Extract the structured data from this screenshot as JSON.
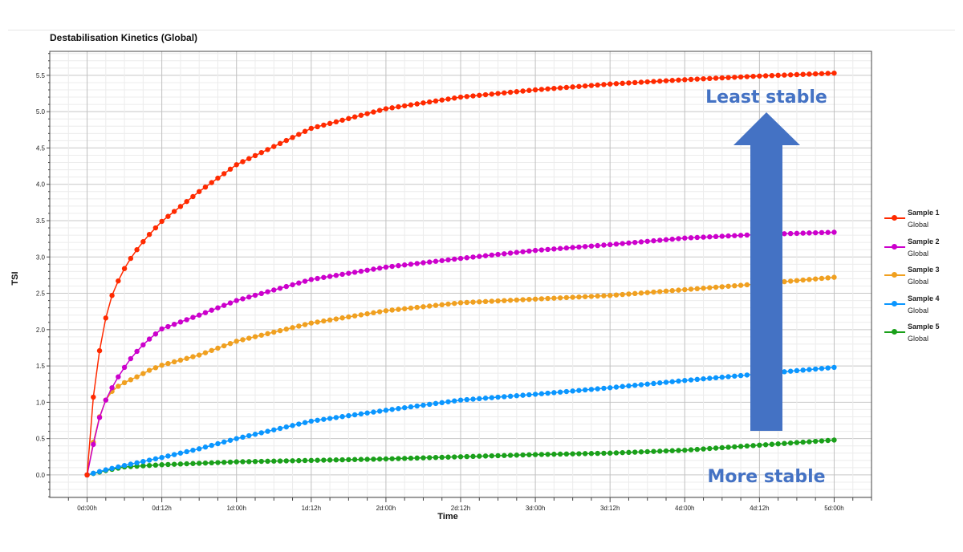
{
  "chart_data": {
    "type": "line",
    "title": "Destabilisation Kinetics (Global)",
    "xlabel": "Time",
    "ylabel": "TSI",
    "x_unit": "hours",
    "xlim": [
      -6,
      126
    ],
    "ylim": [
      -0.31,
      5.83
    ],
    "grid": true,
    "legend_placement": "right",
    "x_ticks": [
      {
        "value": 0,
        "label": "0d:00h"
      },
      {
        "value": 12,
        "label": "0d:12h"
      },
      {
        "value": 24,
        "label": "1d:00h"
      },
      {
        "value": 36,
        "label": "1d:12h"
      },
      {
        "value": 48,
        "label": "2d:00h"
      },
      {
        "value": 60,
        "label": "2d:12h"
      },
      {
        "value": 72,
        "label": "3d:00h"
      },
      {
        "value": 84,
        "label": "3d:12h"
      },
      {
        "value": 96,
        "label": "4d:00h"
      },
      {
        "value": 108,
        "label": "4d:12h"
      },
      {
        "value": 120,
        "label": "5d:00h"
      }
    ],
    "y_ticks": [
      "0.0",
      "0.5",
      "1.0",
      "1.5",
      "2.0",
      "2.5",
      "3.0",
      "3.5",
      "4.0",
      "4.5",
      "5.0",
      "5.5"
    ],
    "series": [
      {
        "name": "Sample 1",
        "subtitle": "Global",
        "color": "#ff2a00",
        "x": [
          0,
          1,
          2,
          3,
          4,
          5,
          6,
          7,
          8,
          9,
          10,
          12,
          18,
          24,
          36,
          48,
          60,
          72,
          84,
          96,
          108,
          120
        ],
        "y": [
          0,
          1.07,
          1.71,
          2.16,
          2.47,
          2.67,
          2.84,
          2.98,
          3.1,
          3.21,
          3.31,
          3.49,
          3.9,
          4.27,
          4.77,
          5.04,
          5.2,
          5.3,
          5.38,
          5.44,
          5.49,
          5.53
        ]
      },
      {
        "name": "Sample 2",
        "subtitle": "Global",
        "color": "#cc00cc",
        "x": [
          0,
          1,
          2,
          3,
          4,
          5,
          6,
          7,
          8,
          9,
          10,
          12,
          18,
          24,
          36,
          48,
          60,
          72,
          84,
          96,
          108,
          120
        ],
        "y": [
          0,
          0.42,
          0.79,
          1.03,
          1.2,
          1.35,
          1.48,
          1.6,
          1.7,
          1.79,
          1.87,
          2.01,
          2.2,
          2.4,
          2.69,
          2.86,
          2.98,
          3.09,
          3.17,
          3.26,
          3.31,
          3.34
        ]
      },
      {
        "name": "Sample 3",
        "subtitle": "Global",
        "color": "#f0a020",
        "x": [
          0,
          1,
          2,
          3,
          4,
          5,
          6,
          8,
          10,
          12,
          18,
          24,
          36,
          48,
          60,
          72,
          84,
          96,
          108,
          120
        ],
        "y": [
          0,
          0.45,
          0.8,
          1.03,
          1.15,
          1.22,
          1.27,
          1.35,
          1.44,
          1.51,
          1.65,
          1.84,
          2.09,
          2.26,
          2.37,
          2.42,
          2.47,
          2.55,
          2.63,
          2.72
        ]
      },
      {
        "name": "Sample 4",
        "subtitle": "Global",
        "color": "#0a96ff",
        "x": [
          0,
          3,
          6,
          12,
          18,
          24,
          36,
          48,
          60,
          72,
          84,
          96,
          108,
          120
        ],
        "y": [
          0,
          0.07,
          0.13,
          0.24,
          0.36,
          0.5,
          0.74,
          0.89,
          1.03,
          1.11,
          1.2,
          1.3,
          1.39,
          1.48
        ]
      },
      {
        "name": "Sample 5",
        "subtitle": "Global",
        "color": "#1aa01a",
        "x": [
          0,
          3,
          6,
          12,
          24,
          36,
          48,
          60,
          72,
          84,
          96,
          108,
          120
        ],
        "y": [
          0,
          0.06,
          0.11,
          0.14,
          0.18,
          0.2,
          0.22,
          0.25,
          0.28,
          0.3,
          0.34,
          0.41,
          0.48
        ]
      }
    ],
    "annotations": [
      {
        "text": "Least stable",
        "color": "#4472c4"
      },
      {
        "text": "More stable",
        "color": "#4472c4"
      }
    ]
  }
}
